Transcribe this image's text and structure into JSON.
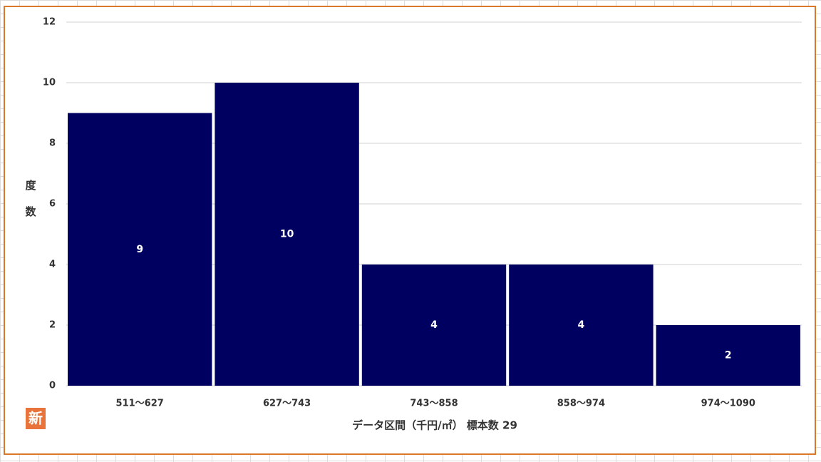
{
  "chart_data": {
    "type": "bar",
    "categories": [
      "511～627",
      "627～743",
      "743～858",
      "858～974",
      "974～1090"
    ],
    "values": [
      9,
      10,
      4,
      4,
      2
    ],
    "color": "#000060",
    "ylim": [
      0,
      12
    ],
    "yticks": [
      0,
      2,
      4,
      6,
      8,
      10,
      12
    ],
    "grid": true,
    "y_label": "度数",
    "x_label": "データ区間（千円/㎡） 標本数 29",
    "badge": "新"
  }
}
